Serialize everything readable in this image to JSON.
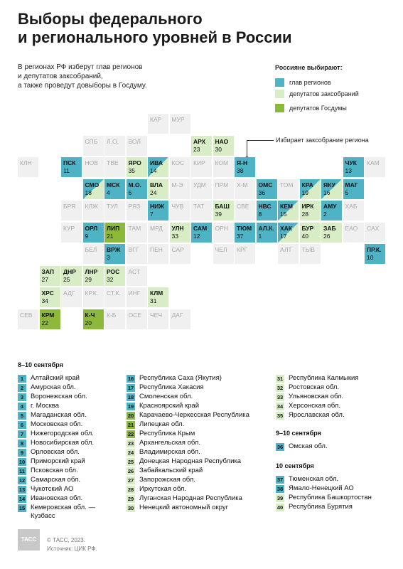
{
  "title": [
    "Выборы федерального",
    "и регионального уровней в России"
  ],
  "intro": [
    "В регионах РФ изберут глав регионов",
    "и депутатов заксобраний,",
    "а также проведут довыборы в Госдуму."
  ],
  "legend": {
    "title": "Россияне выбирают:",
    "items": [
      {
        "label": "глав регионов",
        "color": "#4db3c5"
      },
      {
        "label": "депутатов заксобраний",
        "color": "#d8ecc6"
      },
      {
        "label": "депутатов Госдумы",
        "color": "#8cb93a"
      }
    ]
  },
  "annotation": "Избирает заксобрание региона",
  "cells": [
    {
      "a": "КАР",
      "c": 6,
      "r": 0,
      "t": "empty"
    },
    {
      "a": "МУР",
      "c": 7,
      "r": 0,
      "t": "empty"
    },
    {
      "a": "СПБ",
      "c": 3,
      "r": 1,
      "t": "empty"
    },
    {
      "a": "Л.О.",
      "c": 4,
      "r": 1,
      "t": "empty"
    },
    {
      "a": "ВОЛ",
      "c": 5,
      "r": 1,
      "t": "empty"
    },
    {
      "a": "АРХ",
      "n": "23",
      "c": 8,
      "r": 1,
      "t": "leg"
    },
    {
      "a": "НАО",
      "n": "30",
      "c": 9,
      "r": 1,
      "t": "leg"
    },
    {
      "a": "КЛН",
      "c": 0,
      "r": 2,
      "t": "empty"
    },
    {
      "a": "ПСК",
      "n": "11",
      "c": 2,
      "r": 2,
      "t": "gov"
    },
    {
      "a": "НОВ",
      "c": 3,
      "r": 2,
      "t": "empty"
    },
    {
      "a": "ТВЕ",
      "c": 4,
      "r": 2,
      "t": "empty"
    },
    {
      "a": "ЯРО",
      "n": "35",
      "c": 5,
      "r": 2,
      "t": "leg"
    },
    {
      "a": "ИВА",
      "n": "14",
      "c": 6,
      "r": 2,
      "t": "govleg"
    },
    {
      "a": "КОС",
      "c": 7,
      "r": 2,
      "t": "empty"
    },
    {
      "a": "КИР",
      "c": 8,
      "r": 2,
      "t": "empty"
    },
    {
      "a": "КОМ",
      "c": 9,
      "r": 2,
      "t": "empty"
    },
    {
      "a": "Я-Н",
      "n": "38",
      "c": 10,
      "r": 2,
      "t": "gov"
    },
    {
      "a": "ЧУК",
      "n": "13",
      "c": 15,
      "r": 2,
      "t": "gov"
    },
    {
      "a": "КАМ",
      "c": 16,
      "r": 2,
      "t": "empty"
    },
    {
      "a": "СМО",
      "n": "18",
      "c": 3,
      "r": 3,
      "t": "govleg"
    },
    {
      "a": "МСК",
      "n": "4",
      "c": 4,
      "r": 3,
      "t": "gov"
    },
    {
      "a": "М.О.",
      "n": "6",
      "c": 5,
      "r": 3,
      "t": "gov"
    },
    {
      "a": "ВЛА",
      "n": "24",
      "c": 6,
      "r": 3,
      "t": "leg"
    },
    {
      "a": "М-Э",
      "c": 7,
      "r": 3,
      "t": "empty"
    },
    {
      "a": "УДМ",
      "c": 8,
      "r": 3,
      "t": "empty"
    },
    {
      "a": "ПРМ",
      "c": 9,
      "r": 3,
      "t": "empty"
    },
    {
      "a": "Х-М",
      "c": 10,
      "r": 3,
      "t": "empty"
    },
    {
      "a": "ОМС",
      "n": "36",
      "c": 11,
      "r": 3,
      "t": "gov"
    },
    {
      "a": "ТОМ",
      "c": 12,
      "r": 3,
      "t": "empty"
    },
    {
      "a": "КРА",
      "n": "19",
      "c": 13,
      "r": 3,
      "t": "govleg"
    },
    {
      "a": "ЯКУ",
      "n": "16",
      "c": 14,
      "r": 3,
      "t": "govleg"
    },
    {
      "a": "МАГ",
      "n": "5",
      "c": 15,
      "r": 3,
      "t": "gov"
    },
    {
      "a": "БРЯ",
      "c": 2,
      "r": 4,
      "t": "empty"
    },
    {
      "a": "КЛЖ",
      "c": 3,
      "r": 4,
      "t": "empty"
    },
    {
      "a": "ТУЛ",
      "c": 4,
      "r": 4,
      "t": "empty"
    },
    {
      "a": "РЯЗ",
      "c": 5,
      "r": 4,
      "t": "empty"
    },
    {
      "a": "НИЖ",
      "n": "7",
      "c": 6,
      "r": 4,
      "t": "gov"
    },
    {
      "a": "ЧУВ",
      "c": 7,
      "r": 4,
      "t": "empty"
    },
    {
      "a": "ТАТ",
      "c": 8,
      "r": 4,
      "t": "empty"
    },
    {
      "a": "БАШ",
      "n": "39",
      "c": 9,
      "r": 4,
      "t": "leg"
    },
    {
      "a": "СВЕ",
      "c": 10,
      "r": 4,
      "t": "empty"
    },
    {
      "a": "НВС",
      "n": "8",
      "c": 11,
      "r": 4,
      "t": "gov"
    },
    {
      "a": "КЕМ",
      "n": "15",
      "c": 12,
      "r": 4,
      "t": "govleg"
    },
    {
      "a": "ИРК",
      "n": "28",
      "c": 13,
      "r": 4,
      "t": "leg"
    },
    {
      "a": "АМУ",
      "n": "2",
      "c": 14,
      "r": 4,
      "t": "gov"
    },
    {
      "a": "ХАБ",
      "c": 15,
      "r": 4,
      "t": "empty"
    },
    {
      "a": "КУР",
      "c": 2,
      "r": 5,
      "t": "empty"
    },
    {
      "a": "ОРЛ",
      "n": "9",
      "c": 3,
      "r": 5,
      "t": "gov"
    },
    {
      "a": "ЛИП",
      "n": "21",
      "c": 4,
      "r": 5,
      "t": "duma"
    },
    {
      "a": "ТАМ",
      "c": 5,
      "r": 5,
      "t": "empty"
    },
    {
      "a": "МРД",
      "c": 6,
      "r": 5,
      "t": "empty"
    },
    {
      "a": "УЛН",
      "n": "33",
      "c": 7,
      "r": 5,
      "t": "leg"
    },
    {
      "a": "САМ",
      "n": "12",
      "c": 8,
      "r": 5,
      "t": "gov"
    },
    {
      "a": "ОРН",
      "c": 9,
      "r": 5,
      "t": "empty"
    },
    {
      "a": "ТЮМ",
      "n": "37",
      "c": 10,
      "r": 5,
      "t": "gov"
    },
    {
      "a": "АЛ.К.",
      "n": "1",
      "c": 11,
      "r": 5,
      "t": "gov"
    },
    {
      "a": "ХАК",
      "n": "17",
      "c": 12,
      "r": 5,
      "t": "govleg"
    },
    {
      "a": "БУР",
      "n": "40",
      "c": 13,
      "r": 5,
      "t": "leg"
    },
    {
      "a": "ЗАБ",
      "n": "26",
      "c": 14,
      "r": 5,
      "t": "leg"
    },
    {
      "a": "ЕАО",
      "c": 15,
      "r": 5,
      "t": "empty"
    },
    {
      "a": "САХ",
      "c": 16,
      "r": 5,
      "t": "empty"
    },
    {
      "a": "БЕЛ",
      "c": 3,
      "r": 6,
      "t": "empty"
    },
    {
      "a": "ВРЖ",
      "n": "3",
      "c": 4,
      "r": 6,
      "t": "gov"
    },
    {
      "a": "ВГГ",
      "c": 5,
      "r": 6,
      "t": "empty"
    },
    {
      "a": "ПЕН",
      "c": 6,
      "r": 6,
      "t": "empty"
    },
    {
      "a": "САР",
      "c": 7,
      "r": 6,
      "t": "empty"
    },
    {
      "a": "ЧЕЛ",
      "c": 9,
      "r": 6,
      "t": "empty"
    },
    {
      "a": "КРГ",
      "c": 10,
      "r": 6,
      "t": "empty"
    },
    {
      "a": "АЛТ",
      "c": 12,
      "r": 6,
      "t": "empty"
    },
    {
      "a": "ТЫВ",
      "c": 13,
      "r": 6,
      "t": "empty"
    },
    {
      "a": "ПР.К.",
      "n": "10",
      "c": 16,
      "r": 6,
      "t": "gov"
    },
    {
      "a": "ЗАП",
      "n": "27",
      "c": 1,
      "r": 7,
      "t": "leg"
    },
    {
      "a": "ДНР",
      "n": "25",
      "c": 2,
      "r": 7,
      "t": "leg"
    },
    {
      "a": "ЛНР",
      "n": "29",
      "c": 3,
      "r": 7,
      "t": "leg"
    },
    {
      "a": "РОС",
      "n": "32",
      "c": 4,
      "r": 7,
      "t": "leg"
    },
    {
      "a": "АСТ",
      "c": 5,
      "r": 7,
      "t": "empty"
    },
    {
      "a": "ХРС",
      "n": "34",
      "c": 1,
      "r": 8,
      "t": "leg"
    },
    {
      "a": "АДГ",
      "c": 2,
      "r": 8,
      "t": "empty"
    },
    {
      "a": "КР.К.",
      "c": 3,
      "r": 8,
      "t": "empty"
    },
    {
      "a": "СТ.К.",
      "c": 4,
      "r": 8,
      "t": "empty"
    },
    {
      "a": "ИНГ",
      "c": 5,
      "r": 8,
      "t": "empty"
    },
    {
      "a": "КЛМ",
      "n": "31",
      "c": 6,
      "r": 8,
      "t": "leg"
    },
    {
      "a": "СЕВ",
      "c": 0,
      "r": 9,
      "t": "empty"
    },
    {
      "a": "КРМ",
      "n": "22",
      "c": 1,
      "r": 9,
      "t": "duma"
    },
    {
      "a": "К-Ч",
      "n": "20",
      "c": 3,
      "r": 9,
      "t": "duma"
    },
    {
      "a": "К-Б",
      "c": 4,
      "r": 9,
      "t": "empty"
    },
    {
      "a": "ОСЕ",
      "c": 5,
      "r": 9,
      "t": "empty"
    },
    {
      "a": "ЧЕЧ",
      "c": 6,
      "r": 9,
      "t": "empty"
    },
    {
      "a": "ДАГ",
      "c": 7,
      "r": 9,
      "t": "empty"
    }
  ],
  "sections": [
    {
      "title": "8–10 сентября"
    },
    {
      "title": "9–10 сентября"
    },
    {
      "title": "10 сентября"
    }
  ],
  "list_col1": [
    {
      "n": "1",
      "t": "gov",
      "label": "Алтайский край"
    },
    {
      "n": "2",
      "t": "gov",
      "label": "Амурская обл."
    },
    {
      "n": "3",
      "t": "gov",
      "label": "Воронежская обл."
    },
    {
      "n": "4",
      "t": "gov",
      "label": "г. Москва"
    },
    {
      "n": "5",
      "t": "gov",
      "label": "Магаданская обл."
    },
    {
      "n": "6",
      "t": "gov",
      "label": "Московская обл."
    },
    {
      "n": "7",
      "t": "gov",
      "label": "Нижегородская обл."
    },
    {
      "n": "8",
      "t": "gov",
      "label": "Новосибирская обл."
    },
    {
      "n": "9",
      "t": "gov",
      "label": "Орловская обл."
    },
    {
      "n": "10",
      "t": "gov",
      "label": "Приморский край"
    },
    {
      "n": "11",
      "t": "gov",
      "label": "Псковская обл."
    },
    {
      "n": "12",
      "t": "gov",
      "label": "Самарская обл."
    },
    {
      "n": "13",
      "t": "gov",
      "label": "Чукотский АО"
    },
    {
      "n": "14",
      "t": "gov",
      "label": "Ивановская обл."
    },
    {
      "n": "15",
      "t": "gov",
      "label": "Кемеровская обл. —",
      "label2": "Кузбасс"
    }
  ],
  "list_col2": [
    {
      "n": "16",
      "t": "gov",
      "label": "Республика Саха (Якутия)"
    },
    {
      "n": "17",
      "t": "gov",
      "label": "Республика Хакасия"
    },
    {
      "n": "18",
      "t": "gov",
      "label": "Смоленская обл."
    },
    {
      "n": "19",
      "t": "gov",
      "label": "Красноярский край"
    },
    {
      "n": "20",
      "t": "duma",
      "label": "Карачаево-Черкесская Республика"
    },
    {
      "n": "21",
      "t": "duma",
      "label": "Липецкая обл."
    },
    {
      "n": "22",
      "t": "duma",
      "label": "Республика Крым"
    },
    {
      "n": "23",
      "t": "leg",
      "label": "Архангельская обл."
    },
    {
      "n": "24",
      "t": "leg",
      "label": "Владимирская обл."
    },
    {
      "n": "25",
      "t": "leg",
      "label": "Донецкая Народная Республика"
    },
    {
      "n": "26",
      "t": "leg",
      "label": "Забайкальский край"
    },
    {
      "n": "27",
      "t": "leg",
      "label": "Запорожская обл."
    },
    {
      "n": "28",
      "t": "leg",
      "label": "Иркутская обл."
    },
    {
      "n": "29",
      "t": "leg",
      "label": "Луганская Народная Республика"
    },
    {
      "n": "30",
      "t": "leg",
      "label": "Ненецкий автономный округ"
    }
  ],
  "list_col3a": [
    {
      "n": "31",
      "t": "leg",
      "label": "Республика Калмыкия"
    },
    {
      "n": "32",
      "t": "leg",
      "label": "Ростовская обл."
    },
    {
      "n": "33",
      "t": "leg",
      "label": "Ульяновская обл."
    },
    {
      "n": "34",
      "t": "leg",
      "label": "Херсонская обл."
    },
    {
      "n": "35",
      "t": "leg",
      "label": "Ярославская обл."
    }
  ],
  "list_col3b": [
    {
      "n": "36",
      "t": "gov",
      "label": "Омская обл."
    }
  ],
  "list_col3c": [
    {
      "n": "37",
      "t": "gov",
      "label": "Тюменская обл."
    },
    {
      "n": "38",
      "t": "gov",
      "label": "Ямало-Ненецкий АО"
    },
    {
      "n": "39",
      "t": "leg",
      "label": "Республика Башкортостан"
    },
    {
      "n": "40",
      "t": "leg",
      "label": "Республика Бурятия"
    }
  ],
  "footer": {
    "logo": "ТАСС",
    "copyright": "© ТАСС, 2023.",
    "source": "Источник: ЦИК РФ."
  }
}
